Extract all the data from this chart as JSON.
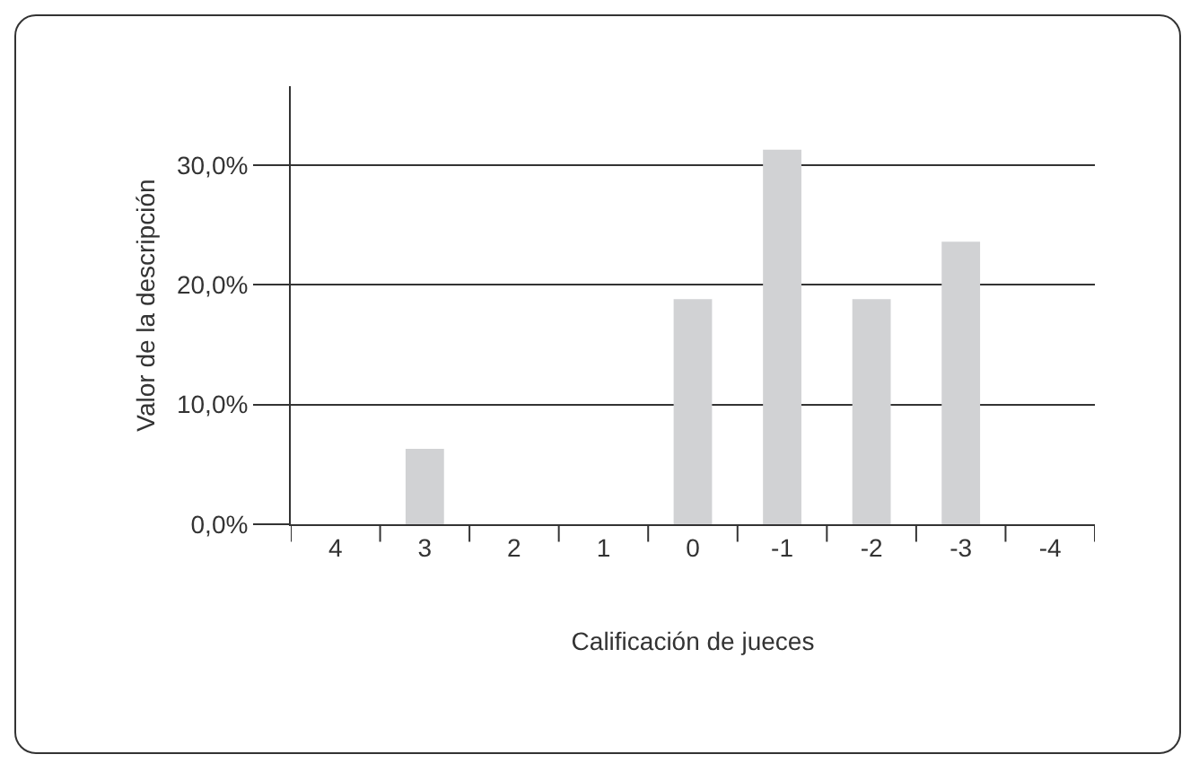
{
  "chart_data": {
    "type": "bar",
    "xlabel": "Calificación de jueces",
    "ylabel": "Valor de la descripción",
    "categories": [
      "4",
      "3",
      "2",
      "1",
      "0",
      "-1",
      "-2",
      "-3",
      "-4"
    ],
    "values": [
      0,
      6.3,
      0,
      0,
      18.8,
      31.3,
      18.8,
      23.6,
      0
    ],
    "color": "#d1d2d4",
    "ylim": [
      0,
      36.6
    ],
    "yticks": [
      {
        "value": 0,
        "label": "0,0%"
      },
      {
        "value": 10,
        "label": "10,0%"
      },
      {
        "value": 20,
        "label": "20,0%"
      },
      {
        "value": 30,
        "label": "30,0%"
      }
    ],
    "grid": "y"
  }
}
